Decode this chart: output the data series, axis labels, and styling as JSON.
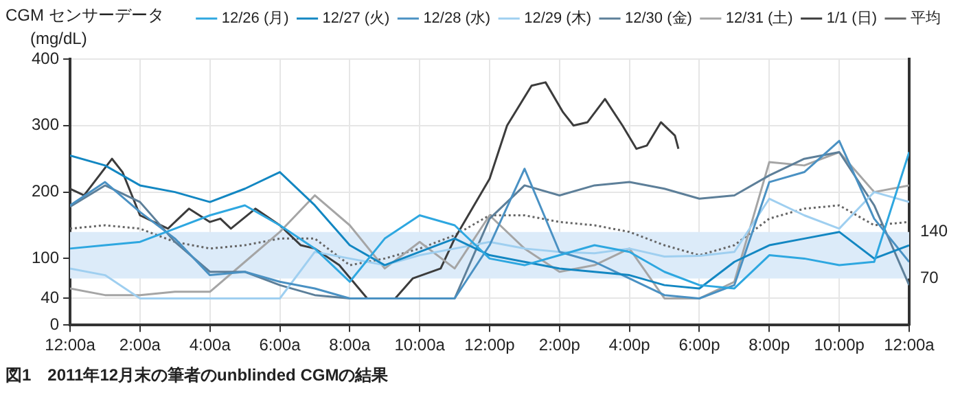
{
  "chart_data": {
    "type": "line",
    "title": "CGM センサーデータ",
    "ylabel": "(mg/dL)",
    "annotations": [
      "図1　2011年12月末の筆者のunblinded CGMの結果"
    ],
    "x": [
      0,
      1,
      2,
      3,
      4,
      5,
      6,
      7,
      8,
      9,
      10,
      11,
      12,
      13,
      14,
      15,
      16,
      17,
      18,
      19,
      20,
      21,
      22,
      23,
      24
    ],
    "xlim": [
      0,
      24
    ],
    "xticks": [
      {
        "value": 0,
        "label": "12:00a"
      },
      {
        "value": 2,
        "label": "2:00a"
      },
      {
        "value": 4,
        "label": "4:00a"
      },
      {
        "value": 6,
        "label": "6:00a"
      },
      {
        "value": 8,
        "label": "8:00a"
      },
      {
        "value": 10,
        "label": "10:00a"
      },
      {
        "value": 12,
        "label": "12:00p"
      },
      {
        "value": 14,
        "label": "2:00p"
      },
      {
        "value": 16,
        "label": "4:00p"
      },
      {
        "value": 18,
        "label": "6:00p"
      },
      {
        "value": 20,
        "label": "8:00p"
      },
      {
        "value": 22,
        "label": "10:00p"
      },
      {
        "value": 24,
        "label": "12:00a"
      }
    ],
    "ylim": [
      0,
      400
    ],
    "yticks": [
      0,
      40,
      100,
      200,
      300,
      400
    ],
    "y2lim": [
      0,
      400
    ],
    "y2ticks": [
      70,
      140
    ],
    "bands": [
      {
        "axis": "y",
        "from": 70,
        "to": 140,
        "color": "#dcebf9"
      }
    ],
    "grid": true,
    "legend": "top right",
    "marker": "none",
    "series": [
      {
        "name": "12/26 (月)",
        "color": "#2ea7e0",
        "values": [
          115,
          120,
          125,
          145,
          165,
          180,
          150,
          115,
          65,
          130,
          165,
          150,
          100,
          90,
          105,
          120,
          110,
          80,
          60,
          55,
          105,
          100,
          90,
          95,
          260
        ]
      },
      {
        "name": "12/27 (火)",
        "color": "#1387c2",
        "values": [
          255,
          240,
          210,
          200,
          185,
          205,
          230,
          180,
          120,
          90,
          110,
          130,
          105,
          95,
          85,
          80,
          75,
          60,
          55,
          95,
          120,
          130,
          140,
          100,
          120
        ]
      },
      {
        "name": "12/28 (水)",
        "color": "#4a91c3",
        "values": [
          180,
          215,
          170,
          130,
          75,
          80,
          65,
          55,
          40,
          40,
          40,
          40,
          120,
          235,
          110,
          95,
          70,
          45,
          40,
          60,
          215,
          230,
          277,
          160,
          95
        ]
      },
      {
        "name": "12/29 (木)",
        "color": "#9fcff0",
        "values": [
          85,
          75,
          40,
          40,
          40,
          40,
          40,
          110,
          100,
          90,
          105,
          115,
          125,
          115,
          110,
          108,
          115,
          103,
          104,
          110,
          190,
          165,
          145,
          200,
          185
        ]
      },
      {
        "name": "12/30 (金)",
        "color": "#5d7f99",
        "values": [
          178,
          210,
          185,
          125,
          80,
          80,
          60,
          45,
          40,
          40,
          40,
          40,
          160,
          210,
          195,
          210,
          215,
          205,
          190,
          195,
          225,
          250,
          260,
          180,
          60
        ]
      },
      {
        "name": "12/31 (土)",
        "color": "#a5a5a5",
        "values": [
          55,
          45,
          45,
          50,
          50,
          95,
          140,
          195,
          150,
          85,
          125,
          85,
          165,
          115,
          80,
          90,
          115,
          40,
          40,
          65,
          245,
          240,
          260,
          200,
          210
        ]
      },
      {
        "name": "1/1 (日)",
        "color": "#3c3c3c",
        "x": [
          0,
          0.4,
          1.2,
          1.5,
          2,
          2.8,
          3.4,
          4,
          4.3,
          4.6,
          5.3,
          6,
          6.6,
          7,
          7.7,
          8.5,
          9.3,
          9.8,
          10.6,
          11,
          12,
          12.5,
          13.2,
          13.6,
          14.1,
          14.4,
          14.8,
          15.3,
          15.8,
          16.2,
          16.5,
          16.9,
          17.3,
          17.4
        ],
        "values": [
          205,
          195,
          250,
          230,
          165,
          145,
          175,
          155,
          160,
          145,
          175,
          150,
          120,
          115,
          90,
          40,
          40,
          70,
          85,
          130,
          220,
          300,
          360,
          365,
          320,
          300,
          305,
          340,
          300,
          265,
          270,
          305,
          285,
          265
        ]
      },
      {
        "name": "平均",
        "color": "#666666",
        "line_style": "dotted",
        "values": [
          145,
          150,
          145,
          125,
          115,
          120,
          130,
          130,
          90,
          100,
          115,
          135,
          165,
          165,
          155,
          150,
          140,
          120,
          105,
          120,
          160,
          175,
          180,
          150,
          155
        ]
      }
    ]
  }
}
